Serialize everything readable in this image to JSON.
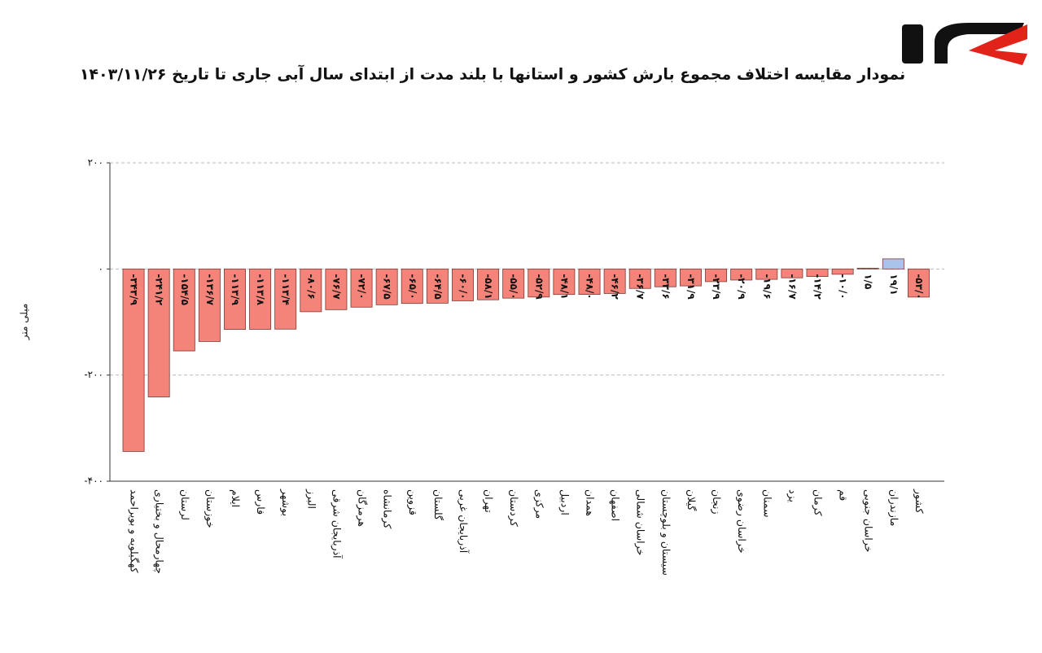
{
  "chart_data": {
    "type": "bar",
    "title": "نمودار مقایسه اختلاف مجموع بارش کشور و استانها با بلند مدت از ابتدای سال آبی جاری تا تاریخ ۱۴۰۳/۱۱/۲۶",
    "y_label": "میلی متر",
    "categories": [
      "کهگیلویه و بویراحمد",
      "چهارمحال و بختیاری",
      "لرستان",
      "خوزستان",
      "ایلام",
      "فارس",
      "بوشهر",
      "البرز",
      "آذربایجان شرقی",
      "هرمزگان",
      "کرمانشاه",
      "قزوین",
      "گلستان",
      "آذربایجان غربی",
      "تهران",
      "کردستان",
      "مرکزی",
      "اردبیل",
      "همدان",
      "اصفهان",
      "خراسان شمالی",
      "سیستان و بلوچستان",
      "گیلان",
      "زنجان",
      "خراسان رضوی",
      "سمنان",
      "یزد",
      "کرمان",
      "قم",
      "خراسان جنوبی",
      "مازندران",
      "کشور"
    ],
    "values": [
      -343.9,
      -241.2,
      -154.5,
      -136.7,
      -113.9,
      -113.8,
      -113.4,
      -80.6,
      -76.7,
      -72.0,
      -67.5,
      -65.0,
      -64.5,
      -60.0,
      -58.1,
      -55.0,
      -52.9,
      -48.1,
      -48.0,
      -46.2,
      -36.7,
      -33.6,
      -31.9,
      -23.9,
      -20.9,
      -19.6,
      -16.7,
      -14.2,
      -10.0,
      1.5,
      19.1,
      -53.0
    ],
    "value_labels": [
      "-۳۴۳/۹",
      "-۲۴۱/۲",
      "-۱۵۴/۵",
      "-۱۳۶/۷",
      "-۱۱۳/۹",
      "-۱۱۳/۸",
      "-۱۱۳/۴",
      "-۸۰/۶",
      "-۷۶/۷",
      "-۷۲/۰",
      "-۶۷/۵",
      "-۶۵/۰",
      "-۶۴/۵",
      "-۶۰/۰",
      "-۵۸/۱",
      "-۵۵/۰",
      "-۵۲/۹",
      "-۴۸/۱",
      "-۴۸/۰",
      "-۴۶/۲",
      "-۳۶/۷",
      "-۳۳/۶",
      "-۳۱/۹",
      "-۲۳/۹",
      "-۲۰/۹",
      "-۱۹/۶",
      "-۱۶/۷",
      "-۱۴/۲",
      "-۱۰/۰",
      "۱/۵",
      "۱۹/۱",
      "-۵۳/۰"
    ],
    "colors": [
      "#f4847a",
      "#f4847a",
      "#f4847a",
      "#f4847a",
      "#f4847a",
      "#f4847a",
      "#f4847a",
      "#f4847a",
      "#f4847a",
      "#f4847a",
      "#f4847a",
      "#f4847a",
      "#f4847a",
      "#f4847a",
      "#f4847a",
      "#f4847a",
      "#f4847a",
      "#f4847a",
      "#f4847a",
      "#f4847a",
      "#f4847a",
      "#f4847a",
      "#f4847a",
      "#f4847a",
      "#f4847a",
      "#f4847a",
      "#f4847a",
      "#f4847a",
      "#f4847a",
      "#f4847a",
      "#a9c3ea",
      "#f4847a"
    ],
    "ylim": [
      -400,
      200
    ],
    "yticks": [
      {
        "value": -400,
        "label": "-۴۰۰"
      },
      {
        "value": -200,
        "label": "-۲۰۰"
      },
      {
        "value": 0,
        "label": "۰"
      },
      {
        "value": 200,
        "label": "۲۰۰"
      }
    ],
    "grid": true
  }
}
